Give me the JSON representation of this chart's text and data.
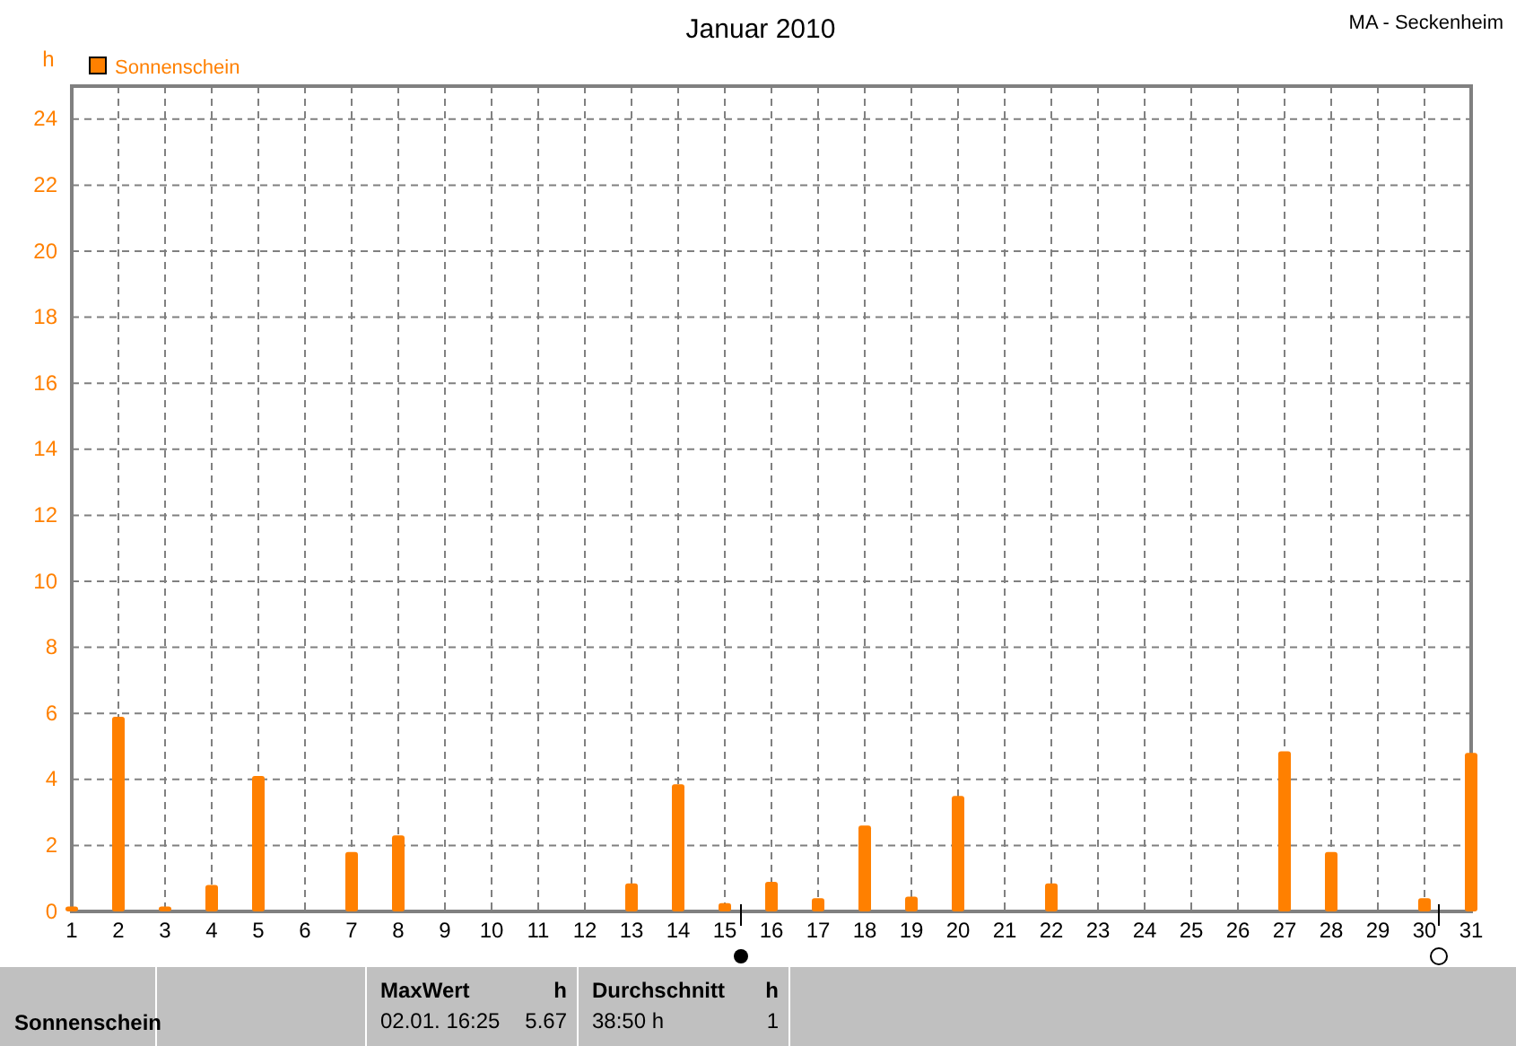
{
  "chart_data": {
    "type": "bar",
    "title": "Januar 2010",
    "ylabel": "h",
    "x": [
      1,
      2,
      3,
      4,
      5,
      6,
      7,
      8,
      9,
      10,
      11,
      12,
      13,
      14,
      15,
      16,
      17,
      18,
      19,
      20,
      21,
      22,
      23,
      24,
      25,
      26,
      27,
      28,
      29,
      30,
      31
    ],
    "series": [
      {
        "name": "Sonnenschein",
        "color": "#ff8000",
        "values": [
          0.15,
          5.9,
          0.15,
          0.8,
          4.1,
          0,
          1.8,
          2.3,
          0,
          0,
          0,
          0,
          0.85,
          3.85,
          0.25,
          0.9,
          0.4,
          2.6,
          0.45,
          3.5,
          0,
          0.85,
          0,
          0,
          0,
          0,
          4.85,
          1.8,
          0,
          0.4,
          4.8
        ]
      }
    ],
    "xlim": [
      1,
      31
    ],
    "xticks": [
      1,
      2,
      3,
      4,
      5,
      6,
      7,
      8,
      9,
      10,
      11,
      12,
      13,
      14,
      15,
      16,
      17,
      18,
      19,
      20,
      21,
      22,
      23,
      24,
      25,
      26,
      27,
      28,
      29,
      30,
      31
    ],
    "ylim": [
      0,
      25
    ],
    "yticks": [
      0,
      2,
      4,
      6,
      8,
      10,
      12,
      14,
      16,
      18,
      20,
      22,
      24
    ],
    "grid": true,
    "legend": "top left",
    "annotations": [
      "MA - Seckenheim",
      "Sonnenschein",
      "MaxWert",
      "h",
      "02.01.  16:25",
      "5.67",
      "Durchschnitt",
      "h",
      "38:50 h",
      "1"
    ]
  }
}
